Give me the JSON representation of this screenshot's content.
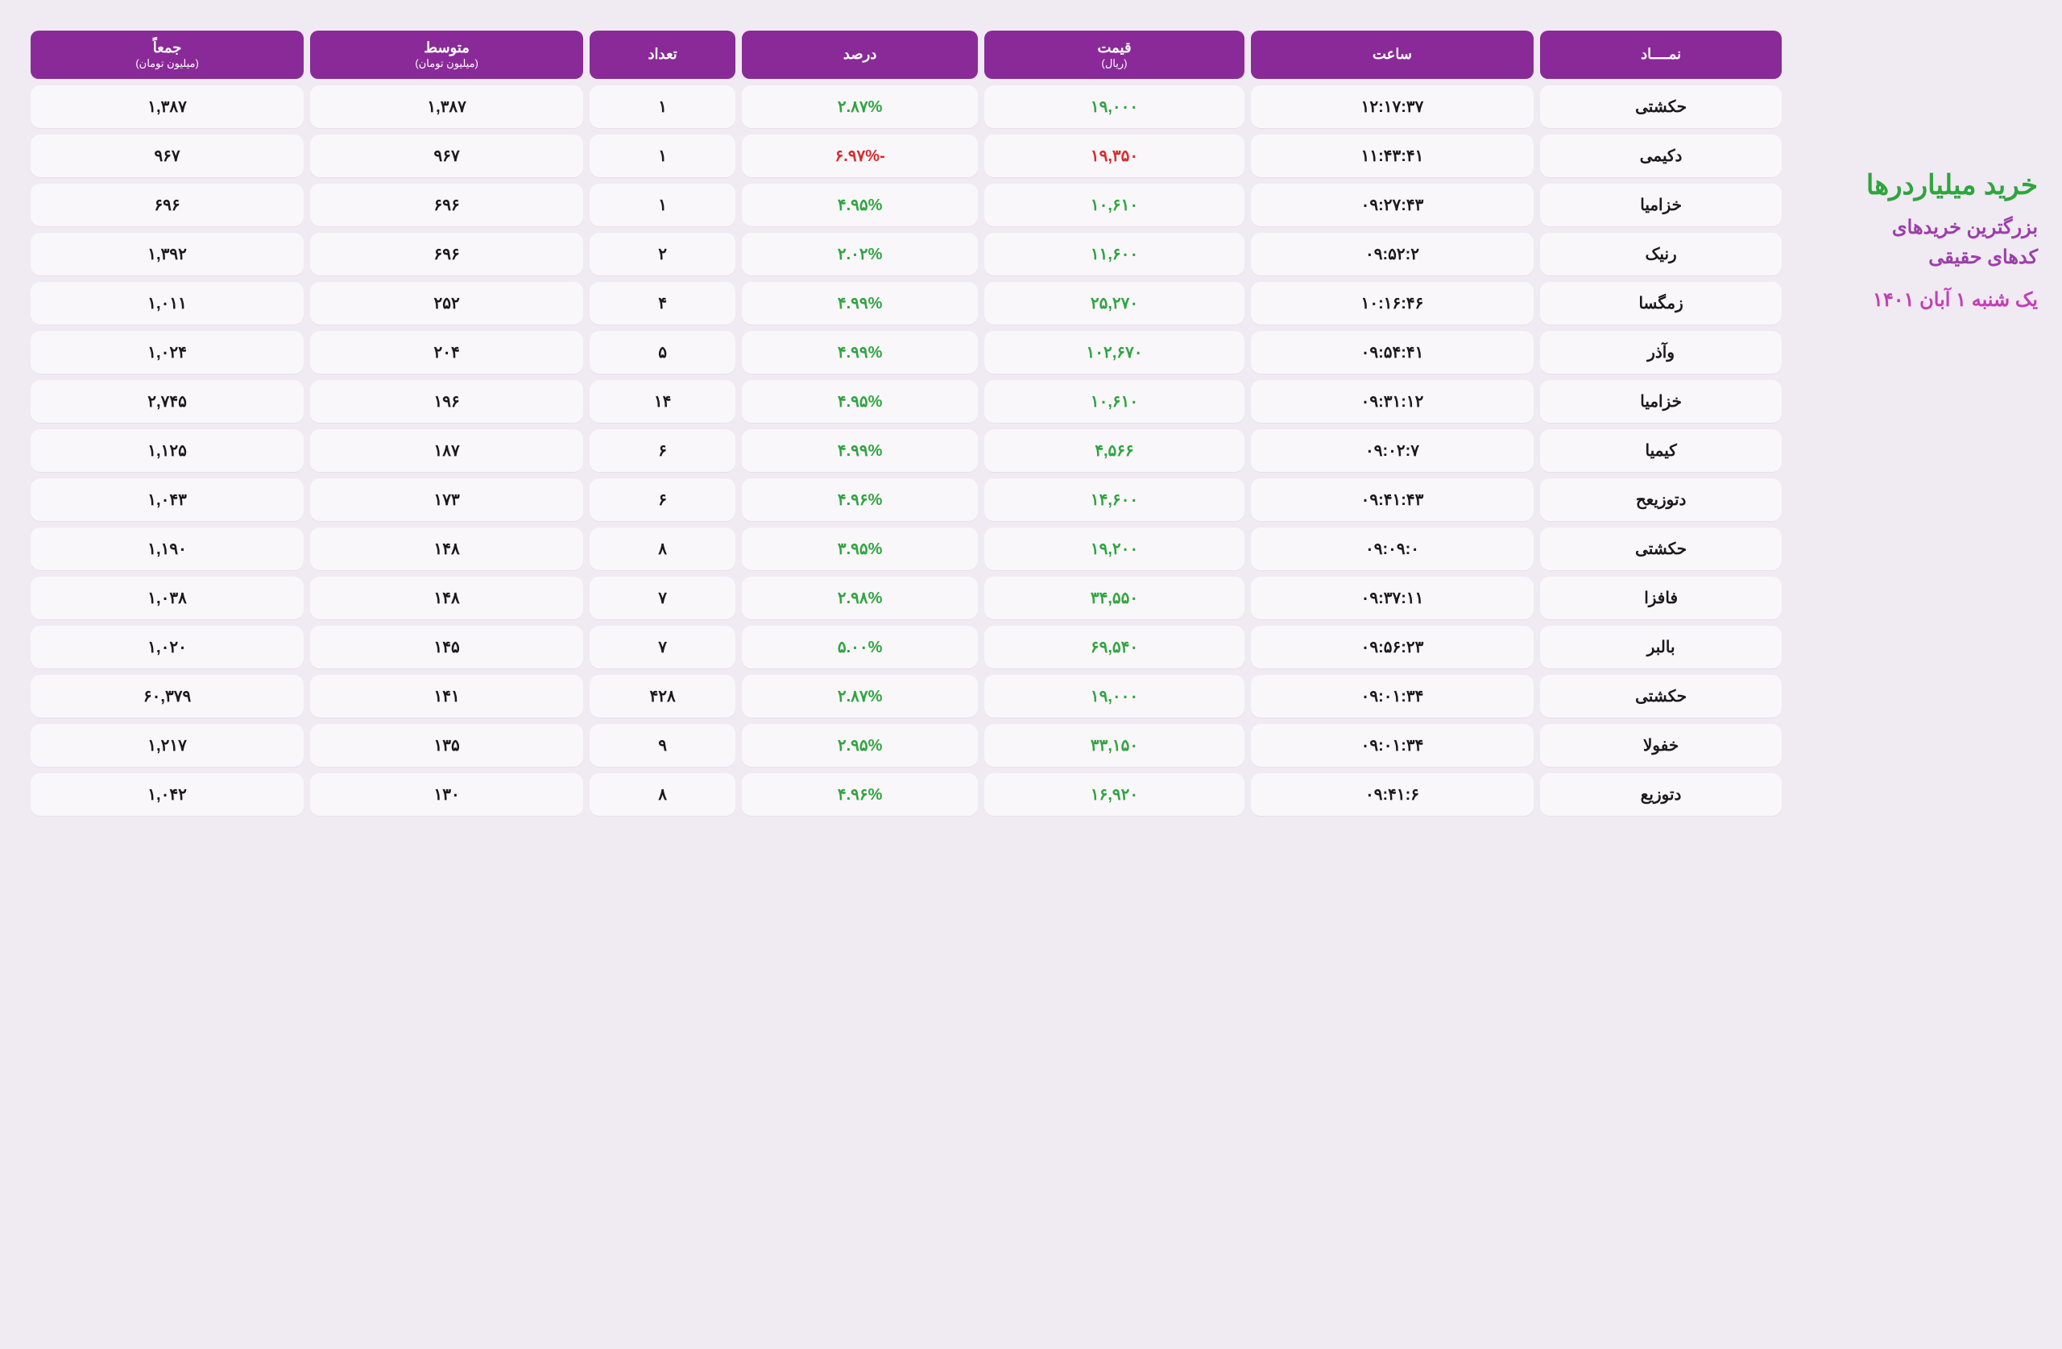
{
  "sidebar": {
    "title": "خرید میلیاردرها",
    "line1": "بزرگترین خریدهای",
    "line2": "کدهای حقیقی",
    "date": "یک شنبه ۱ آبان ۱۴۰۱"
  },
  "headers": {
    "symbol": "نمــــاد",
    "time": "ساعت",
    "price": "قیمت",
    "price_sub": "(ریال)",
    "percent": "درصد",
    "count": "تعداد",
    "avg": "متوسط",
    "avg_sub": "(میلیون تومان)",
    "total": "جمعاً",
    "total_sub": "(میلیون تومان)"
  },
  "rows": [
    {
      "symbol": "حکشتی",
      "time": "۱۲:۱۷:۳۷",
      "price": "۱۹,۰۰۰",
      "percent": "۲.۸۷%",
      "pcolor": "pos",
      "count": "۱",
      "avg": "۱,۳۸۷",
      "total": "۱,۳۸۷"
    },
    {
      "symbol": "دکیمی",
      "time": "۱۱:۴۳:۴۱",
      "price": "۱۹,۳۵۰",
      "percent": "-۶.۹۷%",
      "pcolor": "neg",
      "count": "۱",
      "avg": "۹۶۷",
      "total": "۹۶۷"
    },
    {
      "symbol": "خزامیا",
      "time": "۰۹:۲۷:۴۳",
      "price": "۱۰,۶۱۰",
      "percent": "۴.۹۵%",
      "pcolor": "pos",
      "count": "۱",
      "avg": "۶۹۶",
      "total": "۶۹۶"
    },
    {
      "symbol": "رنیک",
      "time": "۰۹:۵۲:۲",
      "price": "۱۱,۶۰۰",
      "percent": "۲.۰۲%",
      "pcolor": "pos",
      "count": "۲",
      "avg": "۶۹۶",
      "total": "۱,۳۹۲"
    },
    {
      "symbol": "زمگسا",
      "time": "۱۰:۱۶:۴۶",
      "price": "۲۵,۲۷۰",
      "percent": "۴.۹۹%",
      "pcolor": "pos",
      "count": "۴",
      "avg": "۲۵۲",
      "total": "۱,۰۱۱"
    },
    {
      "symbol": "وآذر",
      "time": "۰۹:۵۴:۴۱",
      "price": "۱۰۲,۶۷۰",
      "percent": "۴.۹۹%",
      "pcolor": "pos",
      "count": "۵",
      "avg": "۲۰۴",
      "total": "۱,۰۲۴"
    },
    {
      "symbol": "خزامیا",
      "time": "۰۹:۳۱:۱۲",
      "price": "۱۰,۶۱۰",
      "percent": "۴.۹۵%",
      "pcolor": "pos",
      "count": "۱۴",
      "avg": "۱۹۶",
      "total": "۲,۷۴۵"
    },
    {
      "symbol": "کیمیا",
      "time": "۰۹:۰۲:۷",
      "price": "۴,۵۶۶",
      "percent": "۴.۹۹%",
      "pcolor": "pos",
      "count": "۶",
      "avg": "۱۸۷",
      "total": "۱,۱۲۵"
    },
    {
      "symbol": "دتوزیعح",
      "time": "۰۹:۴۱:۴۳",
      "price": "۱۴,۶۰۰",
      "percent": "۴.۹۶%",
      "pcolor": "pos",
      "count": "۶",
      "avg": "۱۷۳",
      "total": "۱,۰۴۳"
    },
    {
      "symbol": "حکشتی",
      "time": "۰۹:۰۹:۰",
      "price": "۱۹,۲۰۰",
      "percent": "۳.۹۵%",
      "pcolor": "pos",
      "count": "۸",
      "avg": "۱۴۸",
      "total": "۱,۱۹۰"
    },
    {
      "symbol": "فافزا",
      "time": "۰۹:۳۷:۱۱",
      "price": "۳۴,۵۵۰",
      "percent": "۲.۹۸%",
      "pcolor": "pos",
      "count": "۷",
      "avg": "۱۴۸",
      "total": "۱,۰۳۸"
    },
    {
      "symbol": "بالبر",
      "time": "۰۹:۵۶:۲۳",
      "price": "۶۹,۵۴۰",
      "percent": "۵.۰۰%",
      "pcolor": "pos",
      "count": "۷",
      "avg": "۱۴۵",
      "total": "۱,۰۲۰"
    },
    {
      "symbol": "حکشتی",
      "time": "۰۹:۰۱:۳۴",
      "price": "۱۹,۰۰۰",
      "percent": "۲.۸۷%",
      "pcolor": "pos",
      "count": "۴۲۸",
      "avg": "۱۴۱",
      "total": "۶۰,۳۷۹"
    },
    {
      "symbol": "خفولا",
      "time": "۰۹:۰۱:۳۴",
      "price": "۳۳,۱۵۰",
      "percent": "۲.۹۵%",
      "pcolor": "pos",
      "count": "۹",
      "avg": "۱۳۵",
      "total": "۱,۲۱۷"
    },
    {
      "symbol": "دتوزیع",
      "time": "۰۹:۴۱:۶",
      "price": "۱۶,۹۲۰",
      "percent": "۴.۹۶%",
      "pcolor": "pos",
      "count": "۸",
      "avg": "۱۳۰",
      "total": "۱,۰۴۲"
    }
  ]
}
